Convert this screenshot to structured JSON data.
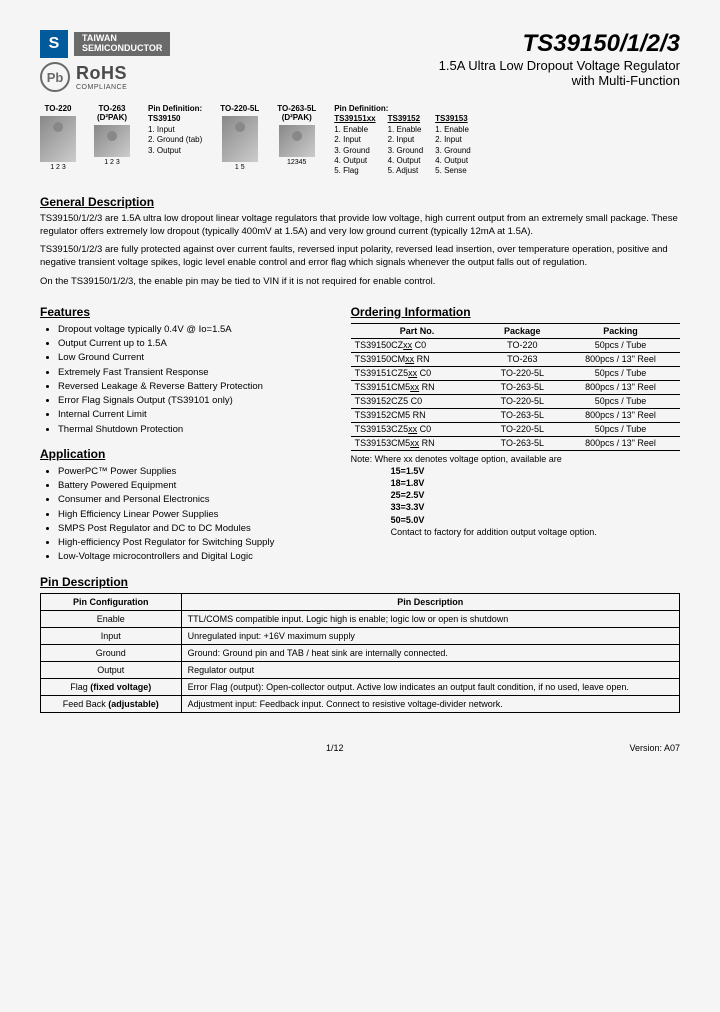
{
  "header": {
    "company_line1": "TAIWAN",
    "company_line2": "SEMICONDUCTOR",
    "rohs_title": "RoHS",
    "rohs_sub": "COMPLIANCE",
    "pb": "Pb",
    "title": "TS39150/1/2/3",
    "subtitle1": "1.5A Ultra Low Dropout Voltage Regulator",
    "subtitle2": "with Multi-Function"
  },
  "packages": {
    "p1": {
      "label": "TO-220",
      "pins": "1 2 3"
    },
    "p2": {
      "label": "TO-263",
      "label2": "(D²PAK)",
      "pins": "1 2 3"
    },
    "p3": {
      "label": "TO-220-5L",
      "pins": "1       5"
    },
    "p4": {
      "label": "TO-263-5L",
      "label2": "(D²PAK)",
      "pins": "12345"
    },
    "pindef1": {
      "header": "Pin Definition:",
      "part": "TS39150",
      "l1": "1. Input",
      "l2": "2. Ground (tab)",
      "l3": "3. Output"
    },
    "pindef2": {
      "header": "Pin Definition:",
      "c1": {
        "part": "TS39151xx",
        "l1": "1. Enable",
        "l2": "2. Input",
        "l3": "3. Ground",
        "l4": "4. Output",
        "l5": "5. Flag"
      },
      "c2": {
        "part": "TS39152",
        "l1": "1. Enable",
        "l2": "2. Input",
        "l3": "3. Ground",
        "l4": "4. Output",
        "l5": "5. Adjust"
      },
      "c3": {
        "part": "TS39153",
        "l1": "1. Enable",
        "l2": "2. Input",
        "l3": "3. Ground",
        "l4": "4. Output",
        "l5": "5. Sense"
      }
    }
  },
  "sections": {
    "general_title": "General Description",
    "general_p1": "TS39150/1/2/3 are 1.5A ultra low dropout linear voltage regulators that provide low voltage, high current output from an extremely small package. These regulator offers extremely low dropout (typically 400mV at 1.5A) and very low ground current (typically 12mA at 1.5A).",
    "general_p2": "TS39150/1/2/3 are fully protected against over current faults, reversed input polarity, reversed lead insertion, over temperature operation, positive and negative transient voltage spikes, logic level enable control and error flag which signals whenever the output falls out of regulation.",
    "general_p3": "On the TS39150/1/2/3, the enable pin may be tied to VIN if it is not required for enable control.",
    "features_title": "Features",
    "features": [
      "Dropout voltage typically 0.4V @ Io=1.5A",
      "Output Current up to 1.5A",
      "Low Ground Current",
      "Extremely Fast Transient Response",
      "Reversed Leakage & Reverse Battery Protection",
      "Error Flag Signals Output (TS39101 only)",
      "Internal Current Limit",
      "Thermal Shutdown Protection"
    ],
    "app_title": "Application",
    "apps": [
      "PowerPC™ Power Supplies",
      "Battery Powered Equipment",
      "Consumer and Personal Electronics",
      "High Efficiency Linear Power Supplies",
      "SMPS Post Regulator and DC to DC Modules",
      "High-efficiency Post Regulator for Switching Supply",
      "Low-Voltage microcontrollers and Digital Logic"
    ],
    "ordering_title": "Ordering Information",
    "order_cols": {
      "c1": "Part No.",
      "c2": "Package",
      "c3": "Packing"
    },
    "order_rows": [
      {
        "p": "TS39150CZxx C0",
        "pkg": "TO-220",
        "pack": "50pcs / Tube"
      },
      {
        "p": "TS39150CMxx RN",
        "pkg": "TO-263",
        "pack": "800pcs / 13\" Reel"
      },
      {
        "p": "TS39151CZ5xx C0",
        "pkg": "TO-220-5L",
        "pack": "50pcs / Tube"
      },
      {
        "p": "TS39151CM5xx RN",
        "pkg": "TO-263-5L",
        "pack": "800pcs / 13\" Reel"
      },
      {
        "p": "TS39152CZ5 C0",
        "pkg": "TO-220-5L",
        "pack": "50pcs / Tube"
      },
      {
        "p": "TS39152CM5 RN",
        "pkg": "TO-263-5L",
        "pack": "800pcs / 13\" Reel"
      },
      {
        "p": "TS39153CZ5xx C0",
        "pkg": "TO-220-5L",
        "pack": "50pcs / Tube"
      },
      {
        "p": "TS39153CM5xx RN",
        "pkg": "TO-263-5L",
        "pack": "800pcs / 13\" Reel"
      }
    ],
    "note": {
      "l0": "Note: Where xx denotes voltage option, available are",
      "l1": "15=1.5V",
      "l2": "18=1.8V",
      "l3": "25=2.5V",
      "l4": "33=3.3V",
      "l5": "50=5.0V",
      "l6": "Contact to factory for addition output voltage option."
    },
    "pindesc_title": "Pin Description",
    "pindesc_cols": {
      "c1": "Pin Configuration",
      "c2": "Pin Description"
    },
    "pindesc_rows": [
      {
        "pc": "Enable",
        "d": "TTL/COMS compatible input. Logic high is enable; logic low or open is shutdown"
      },
      {
        "pc": "Input",
        "d": "Unregulated input: +16V maximum supply"
      },
      {
        "pc": "Ground",
        "d": "Ground: Ground pin and TAB / heat sink are internally connected."
      },
      {
        "pc": "Output",
        "d": "Regulator output"
      },
      {
        "pc": "Flag (fixed voltage)",
        "d": "Error Flag (output): Open-collector output. Active low indicates an output fault condition, if no used, leave open."
      },
      {
        "pc": "Feed Back (adjustable)",
        "d": "Adjustment input: Feedback input. Connect to resistive voltage-divider network."
      }
    ]
  },
  "footer": {
    "page": "1/12",
    "version": "Version: A07"
  }
}
